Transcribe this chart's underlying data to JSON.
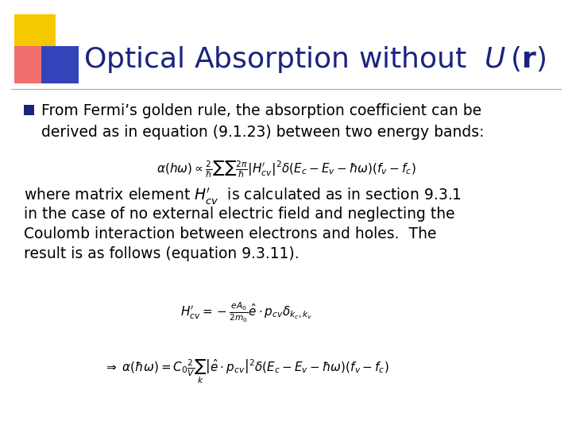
{
  "background_color": "#ffffff",
  "title_color": "#1a237e",
  "title_fontsize": 26,
  "bullet_fontsize": 13.5,
  "eq_fontsize": 11,
  "logo_yellow": "#f5c800",
  "logo_red": "#f07070",
  "logo_blue": "#3344bb",
  "bullet_square_color": "#1a237e",
  "bullet_text1": "From Fermi’s golden rule, the absorption coefficient can be\nderived as in equation (9.1.23) between two energy bands:",
  "eq1": "\\alpha(h\\omega) \\propto \\frac{2}{\\hbar}\\sum\\sum\\frac{2\\pi}{\\hbar}\\left|H_{cv}'\\right|^2 \\delta(E_c - E_v - \\hbar\\omega)(f_v - f_c)",
  "body_line1": "where matrix element $H_{cv}'$  is calculated as in section 9.3.1",
  "body_line2": "in the case of no external electric field and neglecting the",
  "body_line3": "Coulomb interaction between electrons and holes.  The",
  "body_line4": "result is as follows (equation 9.3.11).",
  "eq2": "H_{cv}' = -\\frac{eA_0}{2m_0}\\hat{e}\\cdot p_{cv}\\delta_{k_c,k_v}",
  "eq3": "\\Rightarrow\\; \\alpha(\\hbar\\omega) = C_0\\frac{2}{V}\\sum_{k}\\left|\\hat{e}\\cdot p_{cv}\\right|^2\\delta(E_c - E_v - \\hbar\\omega)(f_v - f_c)"
}
